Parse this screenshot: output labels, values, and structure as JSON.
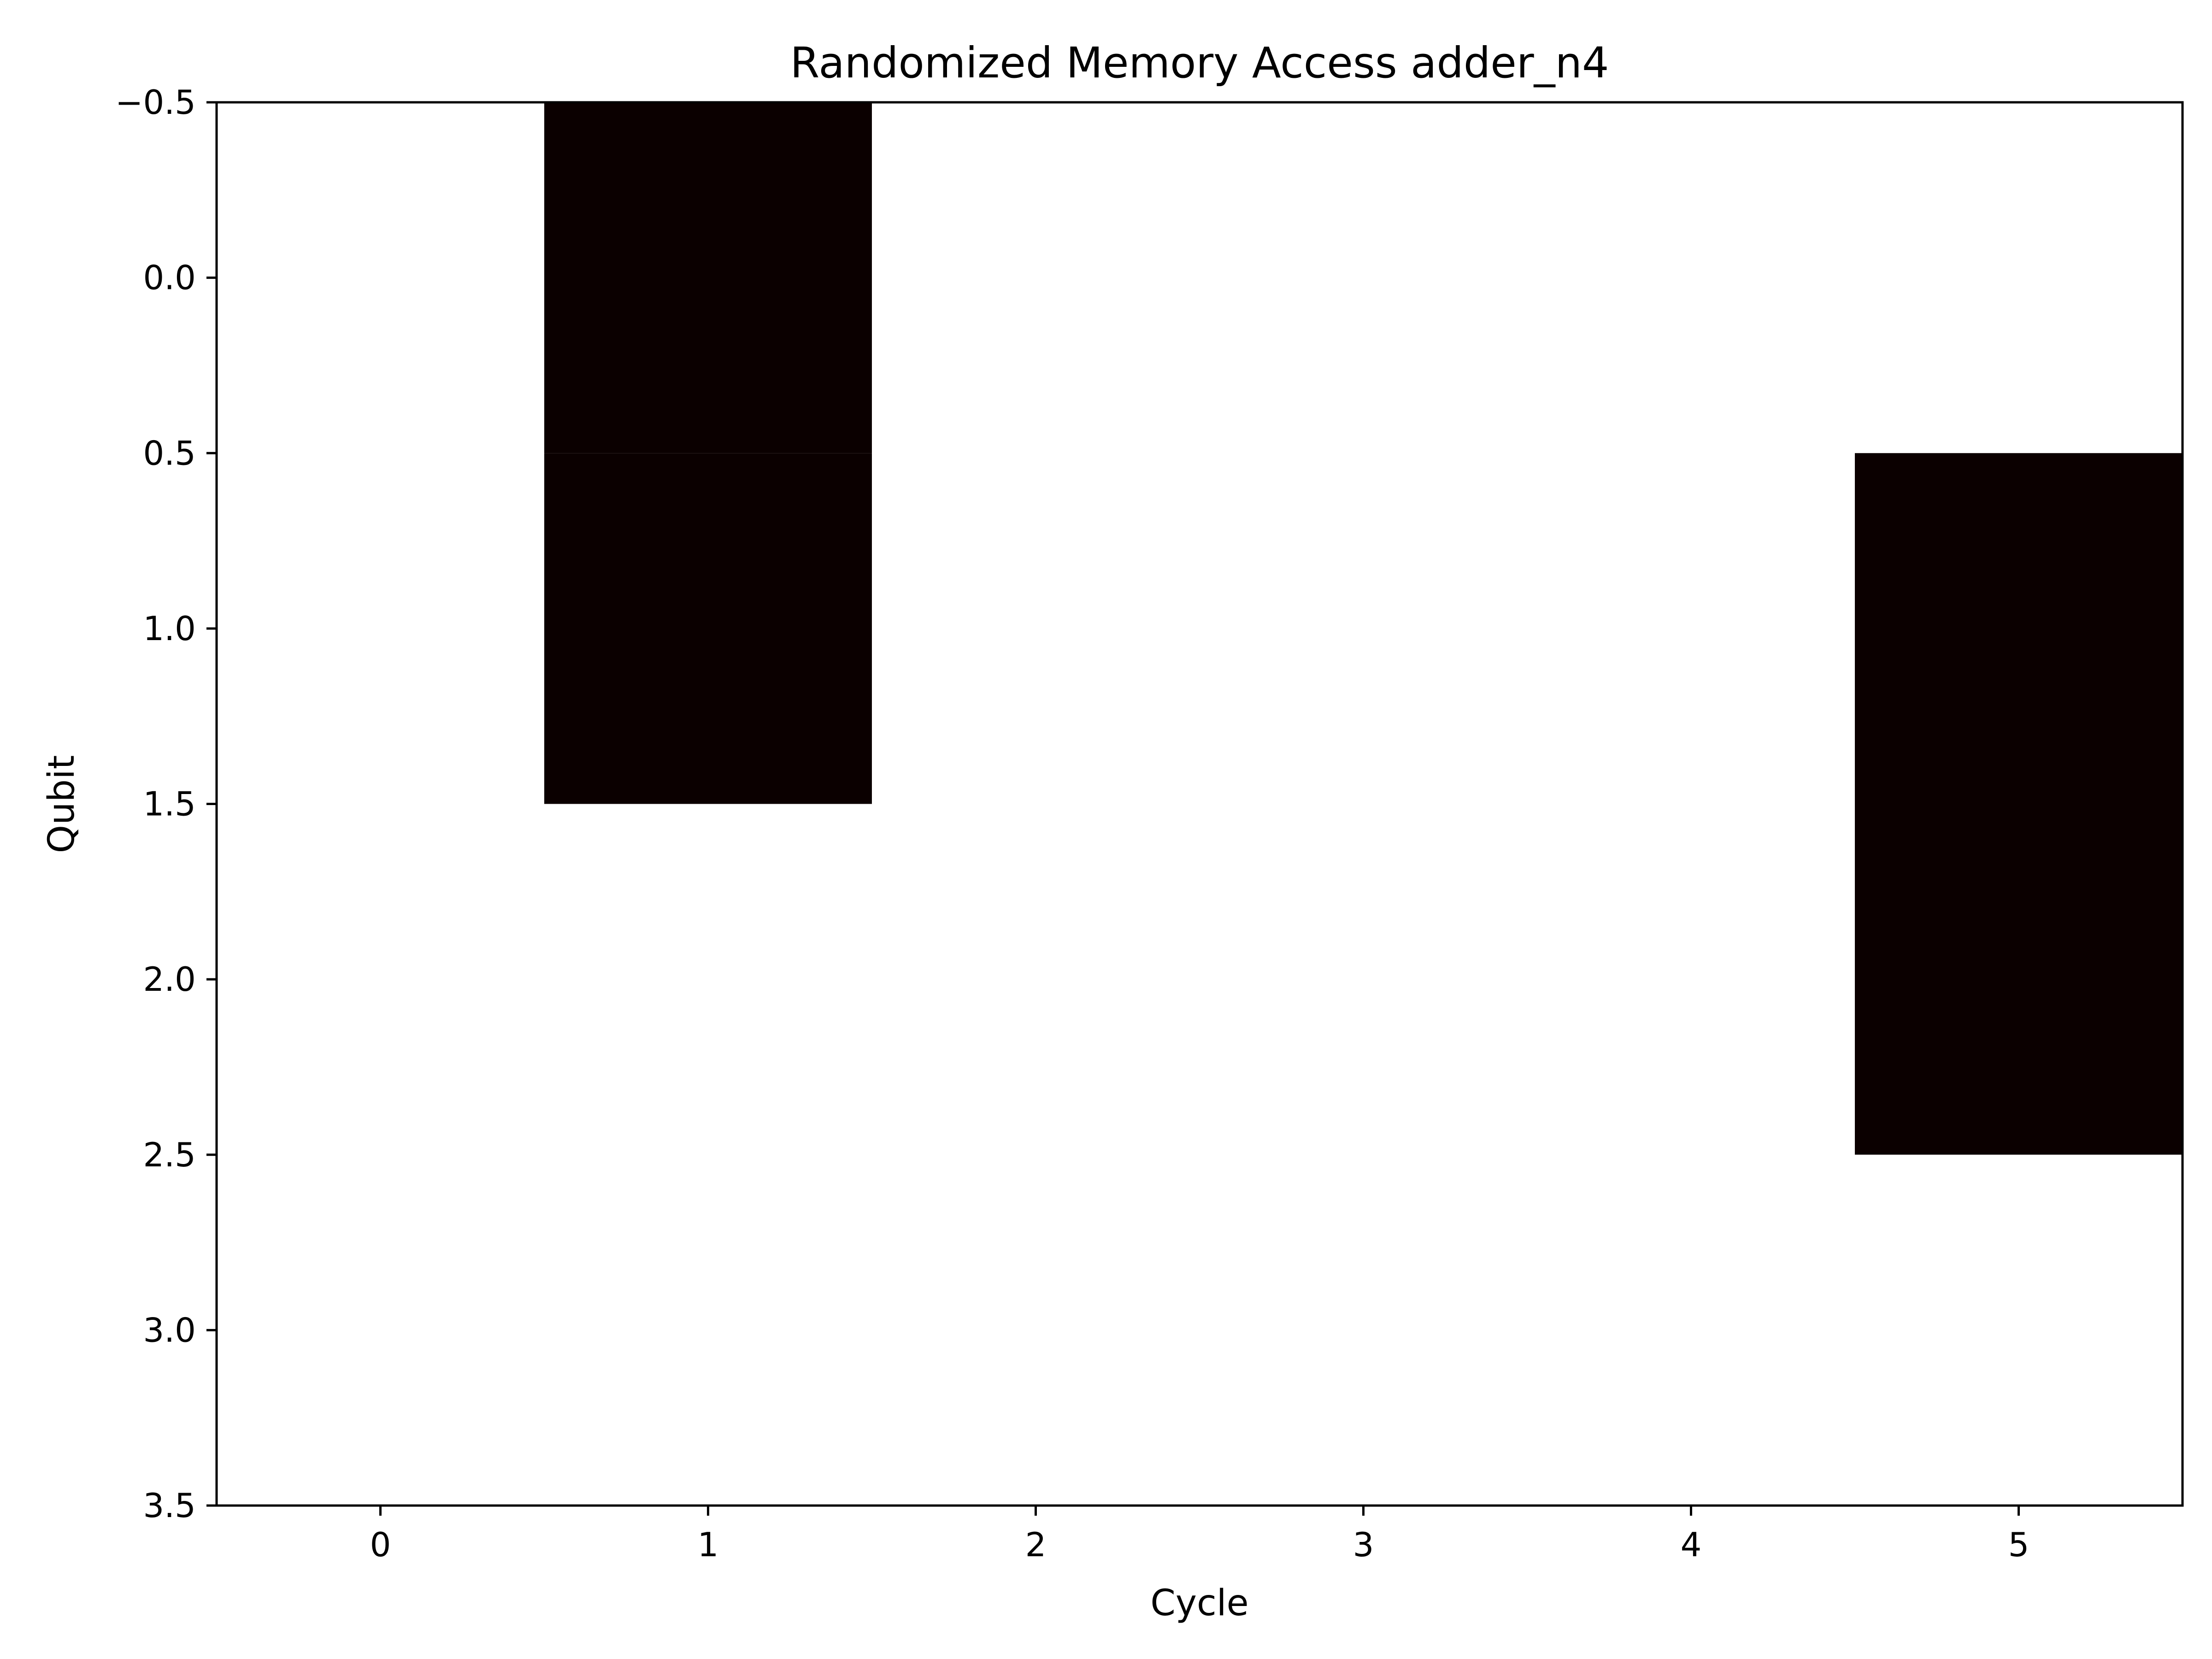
{
  "chart_data": {
    "type": "heatmap",
    "title": "Randomized Memory Access adder_n4",
    "xlabel": "Cycle",
    "ylabel": "Qubit",
    "xlim": [
      -0.5,
      5.5
    ],
    "ylim": [
      -0.5,
      3.5
    ],
    "y_inverted": true,
    "x_ticks": [
      0,
      1,
      2,
      3,
      4,
      5
    ],
    "x_tick_labels": [
      "0",
      "1",
      "2",
      "3",
      "4",
      "5"
    ],
    "y_ticks": [
      -0.5,
      0.0,
      0.5,
      1.0,
      1.5,
      2.0,
      2.5,
      3.0,
      3.5
    ],
    "y_tick_labels": [
      "−0.5",
      "0.0",
      "0.5",
      "1.0",
      "1.5",
      "2.0",
      "2.5",
      "3.0",
      "3.5"
    ],
    "x_cycles": [
      0,
      1,
      2,
      3,
      4,
      5
    ],
    "y_qubits": [
      0,
      1,
      2,
      3
    ],
    "values": [
      [
        0,
        1,
        0,
        0,
        0,
        0
      ],
      [
        0,
        1,
        0,
        0,
        0,
        1
      ],
      [
        0,
        0,
        0,
        0,
        0,
        1
      ],
      [
        0,
        0,
        0,
        0,
        0,
        0
      ]
    ],
    "colors": {
      "low": "#ffffff",
      "high": "#0b0000"
    },
    "grid": false
  }
}
